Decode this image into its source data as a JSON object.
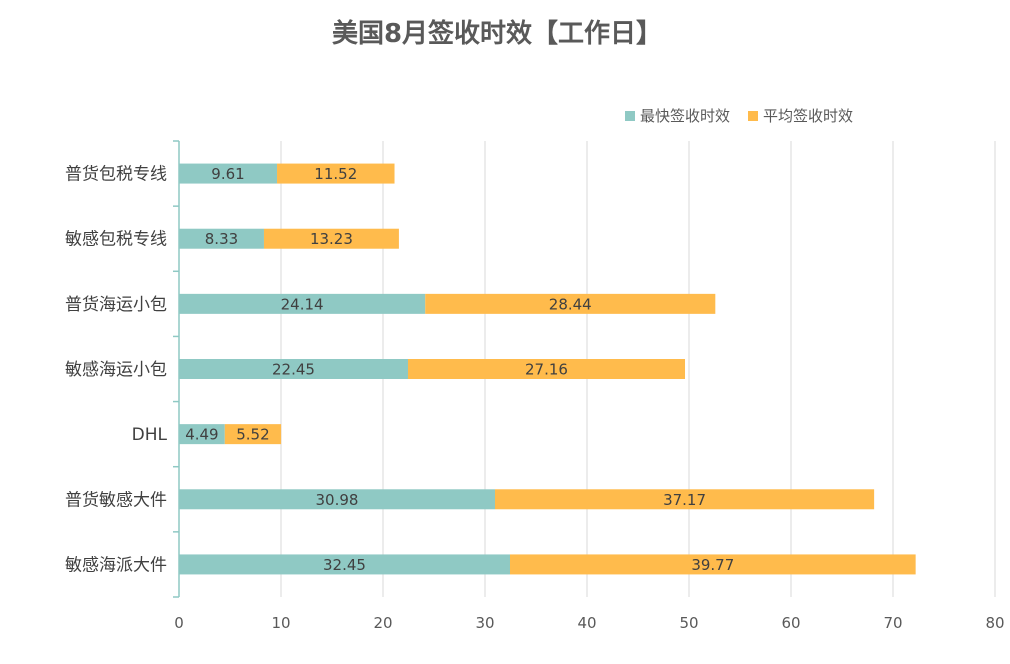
{
  "chart_data": {
    "type": "bar",
    "orientation": "horizontal",
    "stacked": true,
    "title": "美国8月签收时效【工作日】",
    "categories": [
      "普货包税专线",
      "敏感包税专线",
      "普货海运小包",
      "敏感海运小包",
      "DHL",
      "普货敏感大件",
      "敏感海派大件"
    ],
    "series": [
      {
        "name": "最快签收时效",
        "color": "#8FC9C4",
        "values": [
          9.61,
          8.33,
          24.14,
          22.45,
          4.49,
          30.98,
          32.45
        ],
        "labels": [
          "9.61",
          "8.33",
          "24.14",
          "22.45",
          "4.49",
          "30.98",
          "32.45"
        ]
      },
      {
        "name": "平均签收时效",
        "color": "#FFBB4C",
        "values": [
          11.52,
          13.23,
          28.44,
          27.16,
          5.52,
          37.17,
          39.77
        ],
        "labels": [
          "11.52",
          "13.23",
          "28.44",
          "27.16",
          "5.52",
          "37.17",
          "39.77"
        ]
      }
    ],
    "xlim": [
      0,
      80
    ],
    "xticks": [
      0,
      10,
      20,
      30,
      40,
      50,
      60,
      70,
      80
    ],
    "xtick_labels": [
      "0",
      "10",
      "20",
      "30",
      "40",
      "50",
      "60",
      "70",
      "80"
    ],
    "xlabel": "",
    "ylabel": "",
    "grid": "vertical",
    "legend_position": "top-right",
    "colors": {
      "gridline": "#D9D9D9",
      "category_axis": "#8FC9C4"
    }
  }
}
